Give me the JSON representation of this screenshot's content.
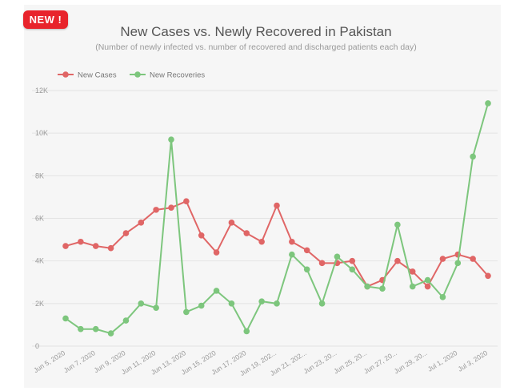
{
  "badge": {
    "label": "NEW !"
  },
  "chart_data": {
    "type": "line",
    "title": "New Cases vs. Newly Recovered in Pakistan",
    "subtitle": "(Number of newly infected vs. number of recovered and discharged patients each day)",
    "xlabel": "",
    "ylabel": "",
    "ylim": [
      0,
      12000
    ],
    "yticks": [
      0,
      2000,
      4000,
      6000,
      8000,
      10000,
      12000
    ],
    "ytick_labels": [
      "0",
      "2K",
      "4K",
      "6K",
      "8K",
      "10K",
      "12K"
    ],
    "x_tick_labels": [
      "Jun 5, 2020",
      "Jun 7, 2020",
      "Jun 9, 2020",
      "Jun 11, 2020",
      "Jun 13, 2020",
      "Jun 15, 2020",
      "Jun 17, 2020",
      "Jun 19, 202...",
      "Jun 21, 202...",
      "Jun 23, 20...",
      "Jun 25, 20...",
      "Jun 27, 20...",
      "Jun 29, 20...",
      "Jul 1, 2020",
      "Jul 3, 2020"
    ],
    "grid": "horizontal",
    "legend_position": "top-left",
    "series": [
      {
        "name": "New Cases",
        "color": "#e06666",
        "values": [
          4700,
          4900,
          4700,
          4600,
          5300,
          5800,
          6400,
          6500,
          6800,
          5200,
          4400,
          5800,
          5300,
          4900,
          6600,
          4900,
          4500,
          3900,
          3900,
          4000,
          2800,
          3100,
          4000,
          3500,
          2800,
          4100,
          4300,
          4100,
          3300
        ]
      },
      {
        "name": "New Recoveries",
        "color": "#7dc67d",
        "values": [
          1300,
          800,
          800,
          600,
          1200,
          2000,
          1800,
          9700,
          1600,
          1900,
          2600,
          2000,
          700,
          2100,
          2000,
          4300,
          3600,
          2000,
          4200,
          3600,
          2800,
          2700,
          5700,
          2800,
          3100,
          2300,
          3900,
          8900,
          11400
        ]
      }
    ]
  }
}
